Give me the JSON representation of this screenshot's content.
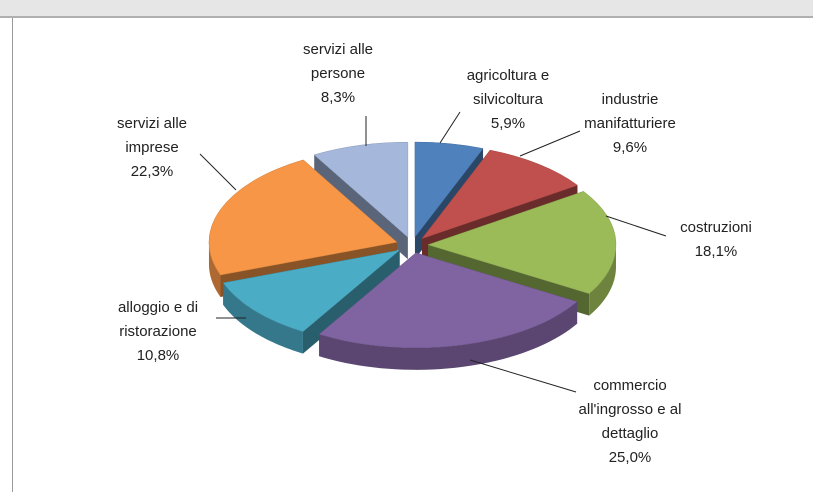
{
  "chart_data": {
    "type": "pie",
    "categories": [
      "agricoltura e silvicoltura",
      "industrie manifatturiere",
      "costruzioni",
      "commercio all'ingrosso e al dettaglio",
      "alloggio e di ristorazione",
      "servizi alle imprese",
      "servizi alle persone"
    ],
    "values": [
      5.9,
      9.6,
      18.1,
      25.0,
      10.8,
      22.3,
      8.3
    ],
    "value_labels": [
      "5,9%",
      "9,6%",
      "18,1%",
      "25,0%",
      "10,8%",
      "22,3%",
      "8,3%"
    ],
    "colors": [
      "#4f81bd",
      "#c0504d",
      "#9bbb59",
      "#8064a2",
      "#4bacc6",
      "#f79646",
      "#a5b8dc"
    ]
  }
}
